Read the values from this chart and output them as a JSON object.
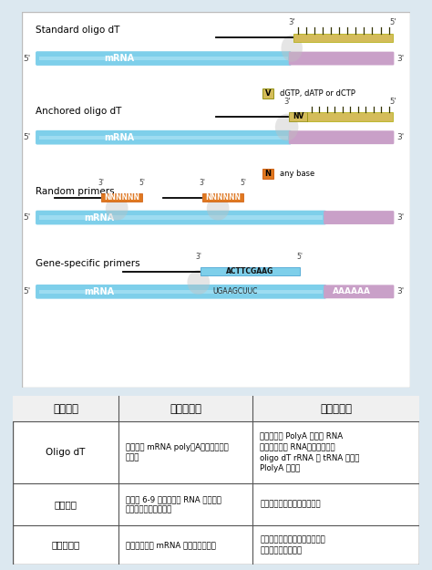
{
  "bg_color": "#dce8f0",
  "mrna_color": "#7ecfea",
  "polya_color": "#c9a0c8",
  "oligo_color": "#d4bc5a",
  "random_color": "#e07820",
  "gene_color": "#7ecfea",
  "table_headers": [
    "引物选择",
    "结构与功能",
    "适用的目标"
  ],
  "table_rows": [
    [
      "Oligo dT",
      "连展退火 mRNA poly（A）尾部的胸腪\n嘱嘴基",
      "适用于具有 PolyA 尾巴的 RNA\n（原核生物的 RNA、真核生物的\noligo dT rRNA 和 tRNA 不具有\nPlolyA 尾巴）"
    ],
    [
      "随机引物",
      "长度为 6-9 个煅基，在 RNA 转录过程\n中，可退火至多个位点",
      "适用于长的或具有发卡结构的"
    ],
    [
      "特异性引物",
      "靶向特异性的 mRNA 序列的定制引物",
      "与模板序列互补的引物，适用于\n目的序列已知的情况"
    ]
  ]
}
